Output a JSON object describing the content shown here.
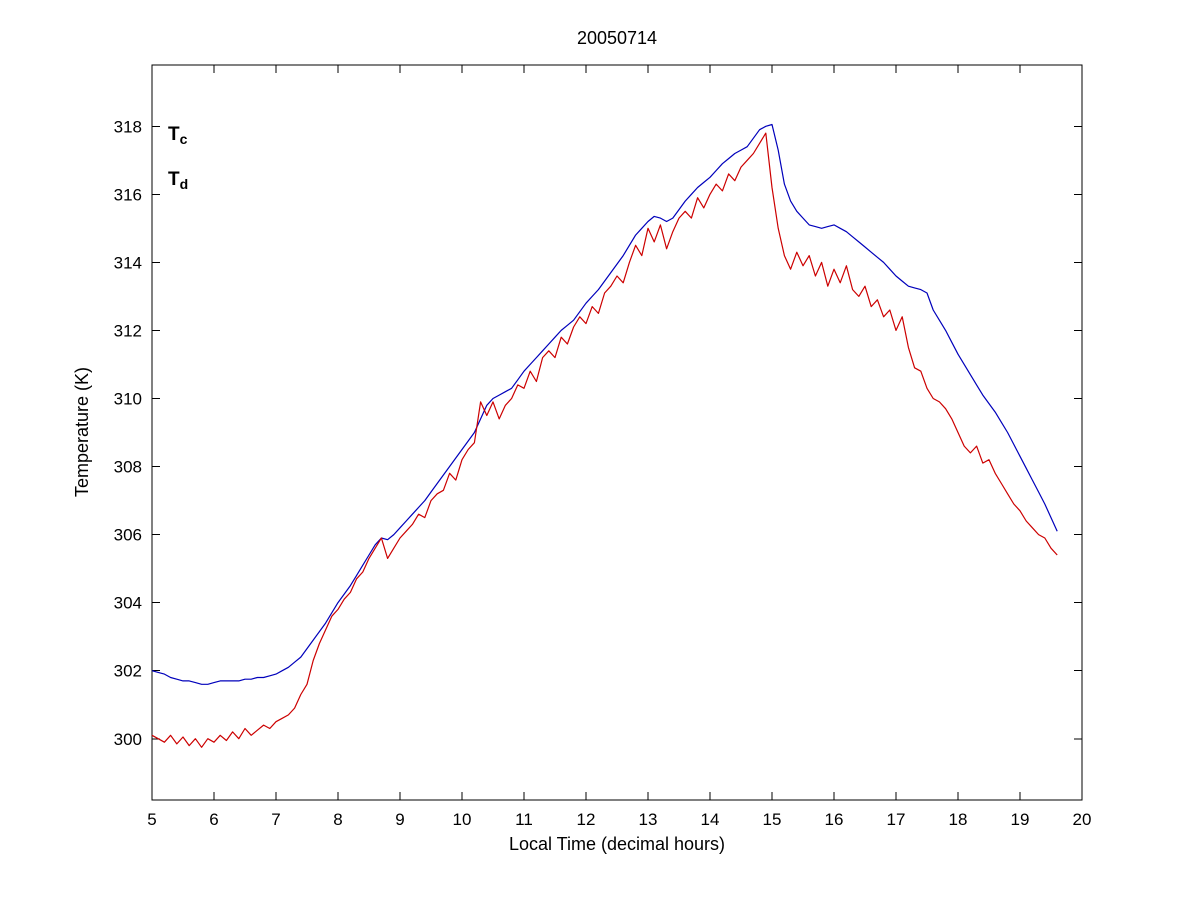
{
  "page": {
    "background": "#ffffff"
  },
  "chart_data": {
    "type": "line",
    "title": "20050714",
    "xlabel": "Local Time (decimal hours)",
    "ylabel": "Temperature (K)",
    "xlim": [
      5,
      20
    ],
    "ylim": [
      298.2,
      319.8
    ],
    "xticks": [
      5,
      6,
      7,
      8,
      9,
      10,
      11,
      12,
      13,
      14,
      15,
      16,
      17,
      18,
      19,
      20
    ],
    "yticks": [
      300,
      302,
      304,
      306,
      308,
      310,
      312,
      314,
      316,
      318
    ],
    "grid": false,
    "axis_color": "#000000",
    "legend": {
      "position": "top-left-inside",
      "entries": [
        {
          "label": "T",
          "subscript": "c",
          "series": "Tc",
          "color": "#0000bb"
        },
        {
          "label": "T",
          "subscript": "d",
          "series": "Td",
          "color": "#cc0000"
        }
      ]
    },
    "series": [
      {
        "name": "Tc",
        "color": "#0000bb",
        "x_start": 5.0,
        "x_step": 0.1,
        "y": [
          302.0,
          301.95,
          301.9,
          301.8,
          301.75,
          301.7,
          301.7,
          301.65,
          301.6,
          301.6,
          301.65,
          301.7,
          301.7,
          301.7,
          301.7,
          301.75,
          301.75,
          301.8,
          301.8,
          301.85,
          301.9,
          302.0,
          302.1,
          302.25,
          302.4,
          302.65,
          302.9,
          303.15,
          303.4,
          303.7,
          304.0,
          304.25,
          304.5,
          304.8,
          305.1,
          305.4,
          305.7,
          305.9,
          305.85,
          306.0,
          306.2,
          306.4,
          306.6,
          306.8,
          307.0,
          307.25,
          307.5,
          307.75,
          308.0,
          308.25,
          308.5,
          308.75,
          309.0,
          309.4,
          309.8,
          310.0,
          310.1,
          310.2,
          310.3,
          310.55,
          310.8,
          311.0,
          311.2,
          311.4,
          311.6,
          311.8,
          312.0,
          312.15,
          312.3,
          312.55,
          312.8,
          313.0,
          313.2,
          313.45,
          313.7,
          313.95,
          314.2,
          314.5,
          314.8,
          315.0,
          315.2,
          315.35,
          315.3,
          315.2,
          315.3,
          315.55,
          315.8,
          316.0,
          316.2,
          316.35,
          316.5,
          316.7,
          316.9,
          317.05,
          317.2,
          317.3,
          317.4,
          317.65,
          317.9,
          318.0,
          318.05,
          317.3,
          316.3,
          315.8,
          315.5,
          315.3,
          315.1,
          315.05,
          315.0,
          315.05,
          315.1,
          315.0,
          314.9,
          314.75,
          314.6,
          314.45,
          314.3,
          314.15,
          314.0,
          313.8,
          313.6,
          313.45,
          313.3,
          313.25,
          313.2,
          313.1,
          312.6,
          312.3,
          312.0,
          311.65,
          311.3,
          311.0,
          310.7,
          310.4,
          310.1,
          309.85,
          309.6,
          309.3,
          309.0,
          308.65,
          308.3,
          307.95,
          307.6,
          307.25,
          306.9,
          306.5,
          306.1
        ]
      },
      {
        "name": "Td",
        "color": "#cc0000",
        "x_start": 5.0,
        "x_step": 0.1,
        "y": [
          300.1,
          300.0,
          299.9,
          300.1,
          299.85,
          300.05,
          299.8,
          300.0,
          299.75,
          300.0,
          299.9,
          300.1,
          299.95,
          300.2,
          300.0,
          300.3,
          300.1,
          300.25,
          300.4,
          300.3,
          300.5,
          300.6,
          300.7,
          300.9,
          301.3,
          301.6,
          302.3,
          302.8,
          303.2,
          303.6,
          303.8,
          304.1,
          304.3,
          304.7,
          304.9,
          305.3,
          305.6,
          305.9,
          305.3,
          305.6,
          305.9,
          306.1,
          306.3,
          306.6,
          306.5,
          307.0,
          307.2,
          307.3,
          307.8,
          307.6,
          308.2,
          308.5,
          308.7,
          309.9,
          309.5,
          309.9,
          309.4,
          309.8,
          310.0,
          310.4,
          310.3,
          310.8,
          310.5,
          311.2,
          311.4,
          311.2,
          311.8,
          311.6,
          312.1,
          312.4,
          312.2,
          312.7,
          312.5,
          313.1,
          313.3,
          313.6,
          313.4,
          314.0,
          314.5,
          314.2,
          315.0,
          314.6,
          315.1,
          314.4,
          314.9,
          315.3,
          315.5,
          315.3,
          315.9,
          315.6,
          316.0,
          316.3,
          316.1,
          316.6,
          316.4,
          316.8,
          317.0,
          317.2,
          317.5,
          317.8,
          316.2,
          315.0,
          314.2,
          313.8,
          314.3,
          313.9,
          314.2,
          313.6,
          314.0,
          313.3,
          313.8,
          313.4,
          313.9,
          313.2,
          313.0,
          313.3,
          312.7,
          312.9,
          312.4,
          312.6,
          312.0,
          312.4,
          311.5,
          310.9,
          310.8,
          310.3,
          310.0,
          309.9,
          309.7,
          309.4,
          309.0,
          308.6,
          308.4,
          308.6,
          308.1,
          308.2,
          307.8,
          307.5,
          307.2,
          306.9,
          306.7,
          306.4,
          306.2,
          306.0,
          305.9,
          305.6,
          305.4
        ]
      }
    ]
  }
}
